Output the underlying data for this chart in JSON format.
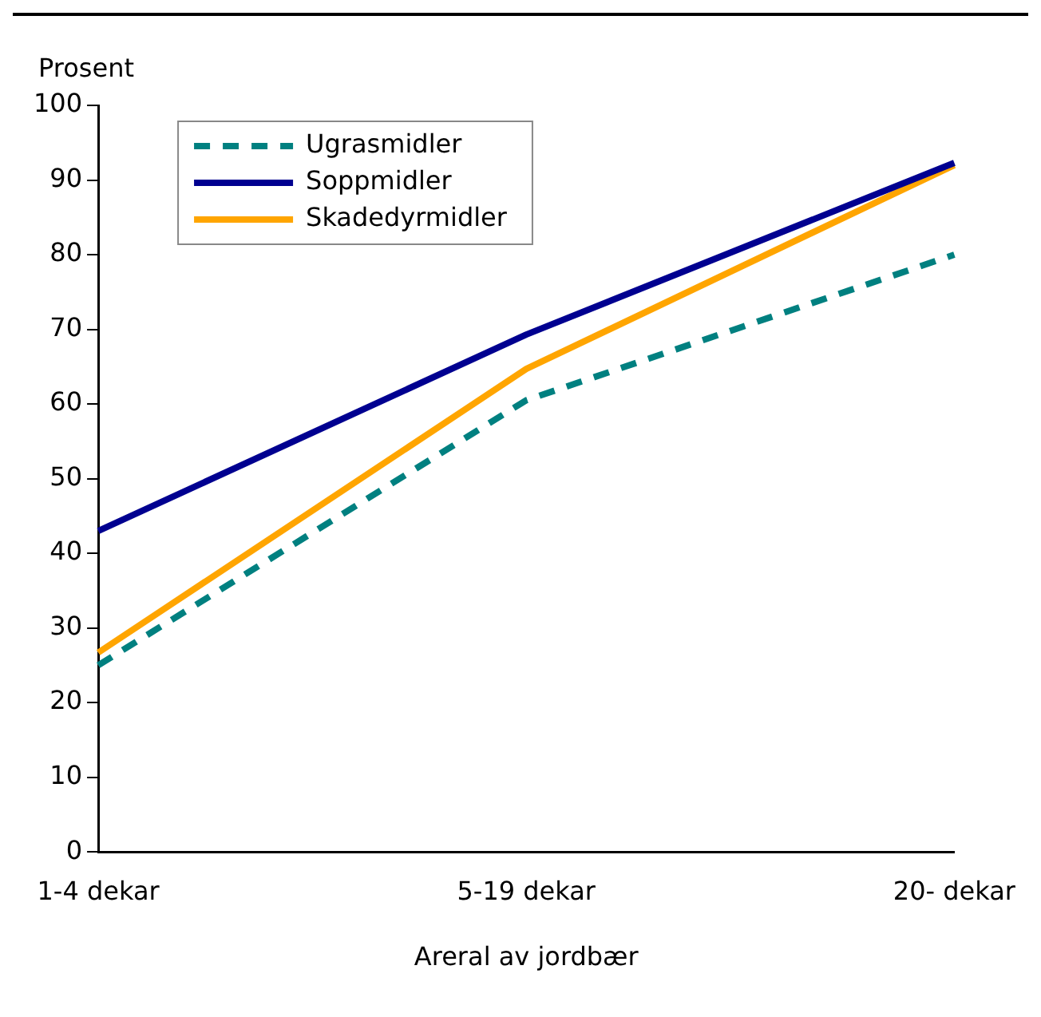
{
  "chart_data": {
    "type": "line",
    "ylabel": "Prosent",
    "xlabel": "Areral av jordbær",
    "categories": [
      "1-4 dekar",
      "5-19 dekar",
      "20- dekar"
    ],
    "series": [
      {
        "name": "Ugrasmidler",
        "color": "#008080",
        "values": [
          25,
          60.5,
          80
        ],
        "line_style": "dashed"
      },
      {
        "name": "Soppmidler",
        "color": "#000090",
        "values": [
          43,
          69.3,
          92.3
        ],
        "line_style": "solid"
      },
      {
        "name": "Skadedyrmidler",
        "color": "#ffa500",
        "values": [
          26.7,
          64.7,
          92
        ],
        "line_style": "solid"
      }
    ],
    "ylim": [
      0,
      100
    ],
    "yticks": [
      0,
      10,
      20,
      30,
      40,
      50,
      60,
      70,
      80,
      90,
      100
    ],
    "grid": false,
    "legend": "top left",
    "marker": "none"
  }
}
